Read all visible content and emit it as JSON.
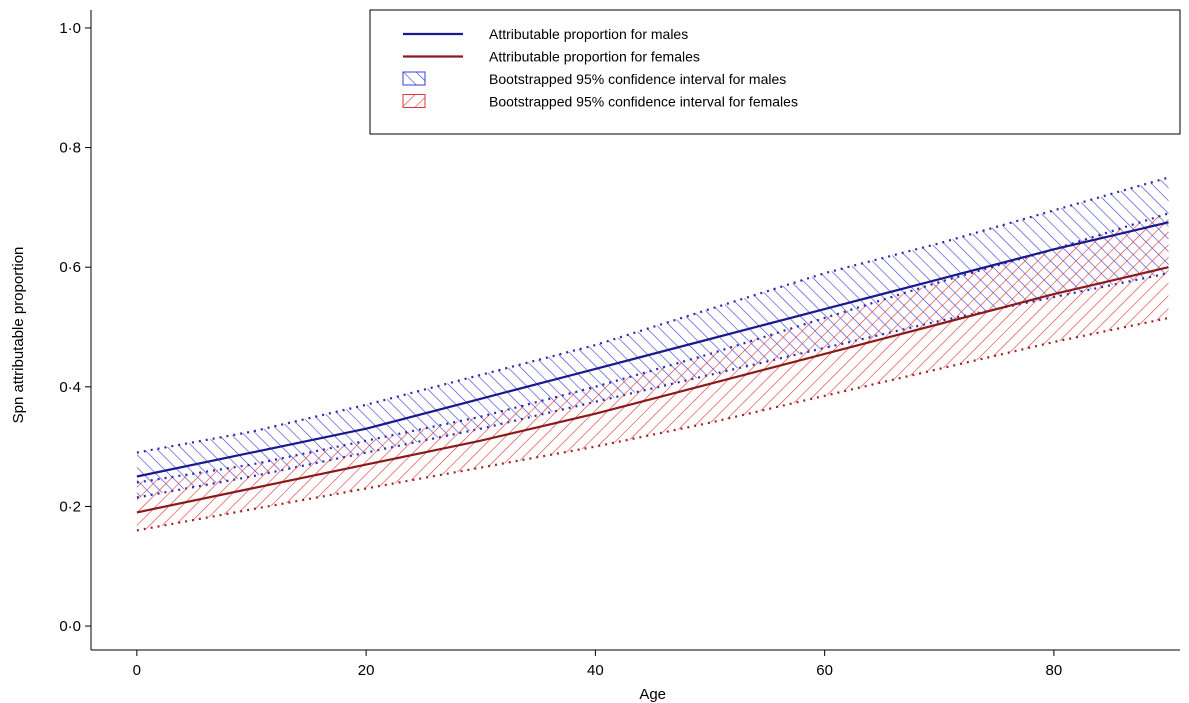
{
  "chart_data": {
    "type": "line",
    "xlabel": "Age",
    "ylabel": "Spn attributable proportion",
    "xlim": [
      -4,
      91
    ],
    "ylim": [
      -0.04,
      1.03
    ],
    "x_ticks": [
      0,
      20,
      40,
      60,
      80
    ],
    "x_tick_labels": [
      "0",
      "20",
      "40",
      "60",
      "80"
    ],
    "y_ticks": [
      0.0,
      0.2,
      0.4,
      0.6,
      0.8,
      1.0
    ],
    "y_tick_labels": [
      "0·0",
      "0·2",
      "0·4",
      "0·6",
      "0·8",
      "1·0"
    ],
    "grid": false,
    "legend_position": "top-right",
    "x": [
      0,
      10,
      20,
      30,
      40,
      50,
      60,
      70,
      80,
      90
    ],
    "series": [
      {
        "name": "Attributable proportion for males",
        "color": "#1a1a8c",
        "values": [
          0.25,
          0.29,
          0.33,
          0.38,
          0.43,
          0.48,
          0.53,
          0.58,
          0.63,
          0.675
        ]
      },
      {
        "name": "Attributable proportion for females",
        "color": "#8b1a1a",
        "values": [
          0.19,
          0.23,
          0.27,
          0.31,
          0.355,
          0.405,
          0.455,
          0.505,
          0.555,
          0.6
        ]
      }
    ],
    "bands": [
      {
        "name": "Bootstrapped 95% confidence interval for males",
        "color": "#3a3ae6",
        "hatch": "forward",
        "lower": [
          0.215,
          0.25,
          0.29,
          0.33,
          0.375,
          0.42,
          0.465,
          0.51,
          0.55,
          0.59
        ],
        "upper": [
          0.29,
          0.325,
          0.37,
          0.42,
          0.47,
          0.53,
          0.59,
          0.64,
          0.695,
          0.75
        ]
      },
      {
        "name": "Bootstrapped 95% confidence interval for females",
        "color": "#e63232",
        "hatch": "backward",
        "lower": [
          0.16,
          0.195,
          0.23,
          0.265,
          0.3,
          0.34,
          0.385,
          0.43,
          0.475,
          0.515
        ],
        "upper": [
          0.24,
          0.27,
          0.31,
          0.35,
          0.4,
          0.455,
          0.515,
          0.575,
          0.63,
          0.69
        ]
      }
    ],
    "legend": [
      {
        "label": "Attributable proportion for males",
        "kind": "line",
        "color": "#1a1a8c"
      },
      {
        "label": "Attributable proportion for females",
        "kind": "line",
        "color": "#8b1a1a"
      },
      {
        "label": "Bootstrapped 95% confidence interval for males",
        "kind": "hatch-forward",
        "color": "#3a3ae6"
      },
      {
        "label": "Bootstrapped 95% confidence interval for females",
        "kind": "hatch-backward",
        "color": "#e63232"
      }
    ]
  }
}
